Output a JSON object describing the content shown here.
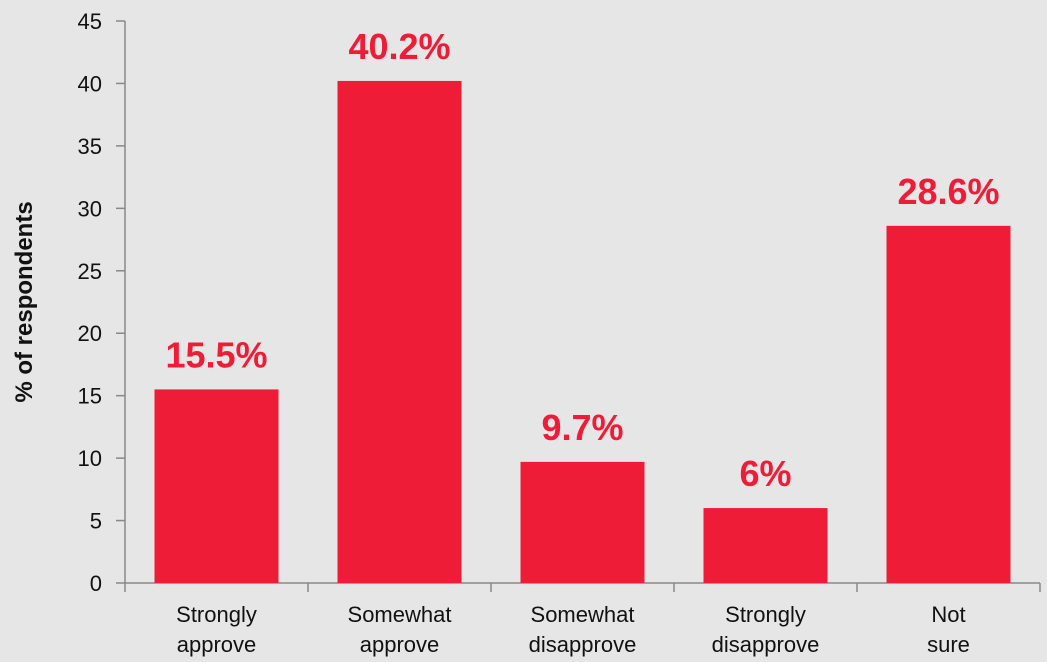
{
  "chart_data": {
    "type": "bar",
    "categories": [
      [
        "Strongly",
        "approve"
      ],
      [
        "Somewhat",
        "approve"
      ],
      [
        "Somewhat",
        "disapprove"
      ],
      [
        "Strongly",
        "disapprove"
      ],
      [
        "Not",
        "sure"
      ]
    ],
    "values": [
      15.5,
      40.2,
      9.7,
      6,
      28.6
    ],
    "data_labels": [
      "15.5%",
      "40.2%",
      "9.7%",
      "6%",
      "28.6%"
    ],
    "title": "",
    "xlabel": "",
    "ylabel": "% of respondents",
    "ylim": [
      0,
      45
    ],
    "yticks": [
      0,
      5,
      10,
      15,
      20,
      25,
      30,
      35,
      40,
      45
    ],
    "grid": false,
    "legend": "none",
    "colors": {
      "bar": "#ee1c37",
      "label": "#ee1c37",
      "axis": "#888888",
      "background": "#e6e6e6"
    }
  }
}
